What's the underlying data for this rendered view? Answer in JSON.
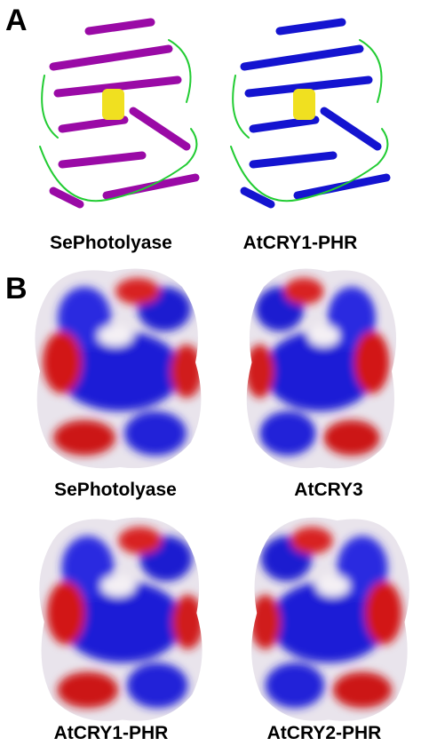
{
  "panel_a": {
    "label": "A",
    "structures": [
      {
        "name": "SePhotolyase"
      },
      {
        "name": "AtCRY1-PHR"
      }
    ]
  },
  "panel_b": {
    "label": "B",
    "surfaces": [
      {
        "name": "SePhotolyase"
      },
      {
        "name": "AtCRY3"
      },
      {
        "name": "AtCRY1-PHR"
      },
      {
        "name": "AtCRY2-PHR"
      }
    ]
  }
}
